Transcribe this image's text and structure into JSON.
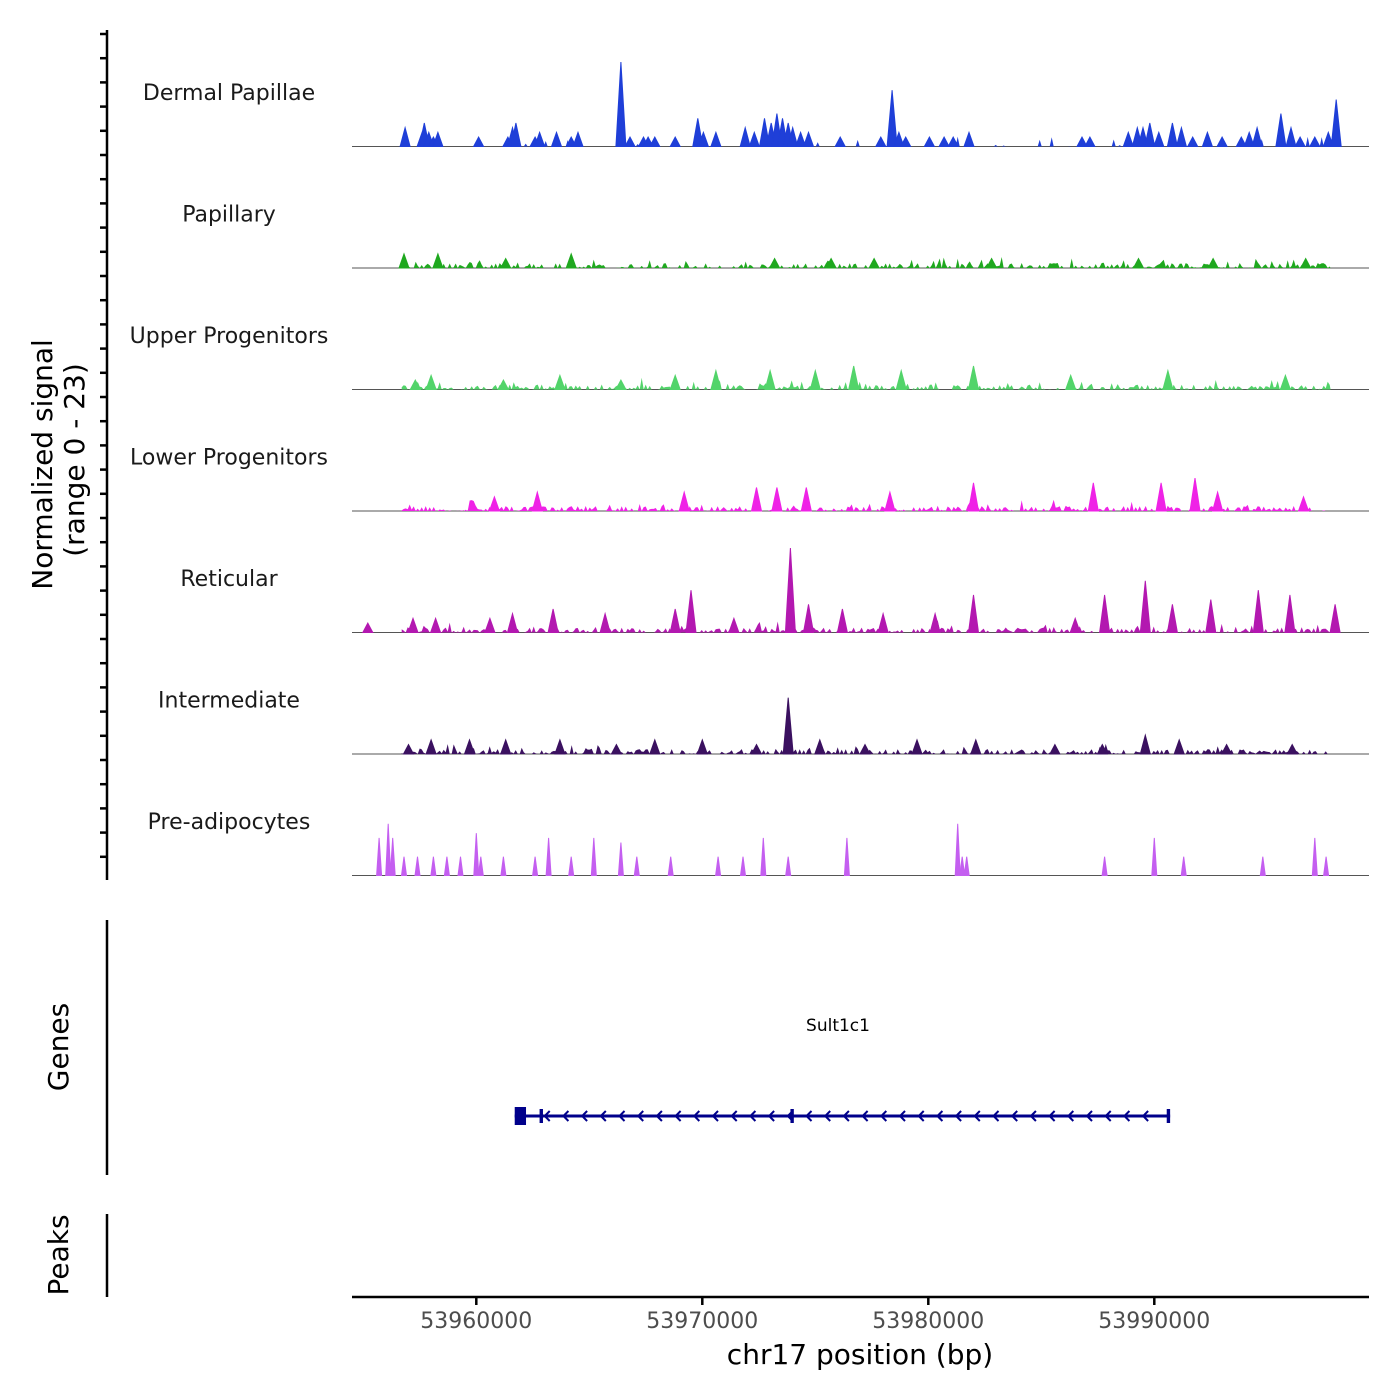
{
  "chart_data": {
    "type": "area",
    "chromosome": "chr17",
    "region": [
      53954500,
      53999500
    ],
    "signal_axis": {
      "title_line1": "Normalized signal",
      "title_line2": "(range 0 - 23)",
      "ylim": [
        0,
        23
      ]
    },
    "tracks": [
      {
        "name": "Dermal Papillae",
        "color": "#1f3fd8",
        "peaks": [
          [
            53956850,
            4
          ],
          [
            53957600,
            3
          ],
          [
            53957700,
            5
          ],
          [
            53957900,
            3
          ],
          [
            53958100,
            2
          ],
          [
            53958300,
            3
          ],
          [
            53960100,
            2
          ],
          [
            53961400,
            2
          ],
          [
            53961600,
            4
          ],
          [
            53961750,
            5
          ],
          [
            53962600,
            2
          ],
          [
            53962800,
            3
          ],
          [
            53963550,
            3
          ],
          [
            53964200,
            2
          ],
          [
            53964500,
            3
          ],
          [
            53966400,
            18
          ],
          [
            53966800,
            2
          ],
          [
            53967400,
            2
          ],
          [
            53967600,
            2
          ],
          [
            53967900,
            2
          ],
          [
            53968800,
            2
          ],
          [
            53969800,
            6
          ],
          [
            53970050,
            3
          ],
          [
            53970600,
            3
          ],
          [
            53971900,
            4
          ],
          [
            53972300,
            3
          ],
          [
            53972750,
            6
          ],
          [
            53973050,
            5
          ],
          [
            53973300,
            7
          ],
          [
            53973550,
            6
          ],
          [
            53973800,
            5
          ],
          [
            53974000,
            4
          ],
          [
            53974350,
            3
          ],
          [
            53974700,
            3
          ],
          [
            53976100,
            2
          ],
          [
            53977900,
            2
          ],
          [
            53978400,
            12
          ],
          [
            53978700,
            3
          ],
          [
            53979000,
            2
          ],
          [
            53980050,
            2
          ],
          [
            53980700,
            2
          ],
          [
            53981100,
            2
          ],
          [
            53981800,
            3
          ],
          [
            53986800,
            2
          ],
          [
            53987150,
            2
          ],
          [
            53988850,
            3
          ],
          [
            53989250,
            4
          ],
          [
            53989500,
            4
          ],
          [
            53989800,
            5
          ],
          [
            53990200,
            3
          ],
          [
            53990800,
            5
          ],
          [
            53991200,
            4
          ],
          [
            53991700,
            2
          ],
          [
            53992350,
            3
          ],
          [
            53993000,
            2
          ],
          [
            53993850,
            2
          ],
          [
            53994200,
            3
          ],
          [
            53994550,
            4
          ],
          [
            53995600,
            7
          ],
          [
            53996050,
            4
          ],
          [
            53996450,
            2
          ],
          [
            53997100,
            2
          ],
          [
            53997700,
            3
          ],
          [
            53998050,
            10
          ]
        ]
      },
      {
        "name": "Papillary",
        "color": "#1fa81f",
        "peaks": [
          [
            53956800,
            3
          ],
          [
            53958300,
            3
          ],
          [
            53961300,
            2
          ],
          [
            53964200,
            3
          ],
          [
            53973200,
            2
          ],
          [
            53975700,
            2
          ],
          [
            53977600,
            2
          ],
          [
            53982800,
            2
          ],
          [
            53989300,
            2
          ],
          [
            53992600,
            2
          ],
          [
            53996700,
            2
          ]
        ]
      },
      {
        "name": "Upper Progenitors",
        "color": "#52d46a",
        "peaks": [
          [
            53957300,
            2
          ],
          [
            53958000,
            3
          ],
          [
            53961200,
            2
          ],
          [
            53963700,
            3
          ],
          [
            53966400,
            2
          ],
          [
            53968800,
            3
          ],
          [
            53970600,
            4
          ],
          [
            53973000,
            4
          ],
          [
            53975000,
            4
          ],
          [
            53976700,
            5
          ],
          [
            53978800,
            4
          ],
          [
            53982000,
            5
          ],
          [
            53986300,
            3
          ],
          [
            53990600,
            4
          ],
          [
            53995800,
            3
          ]
        ]
      },
      {
        "name": "Lower Progenitors",
        "color": "#ef22e6",
        "peaks": [
          [
            53960800,
            3
          ],
          [
            53962700,
            4
          ],
          [
            53969200,
            4
          ],
          [
            53972400,
            5
          ],
          [
            53973300,
            5
          ],
          [
            53974600,
            5
          ],
          [
            53978300,
            4
          ],
          [
            53982000,
            6
          ],
          [
            53987300,
            6
          ],
          [
            53990300,
            6
          ],
          [
            53991800,
            7
          ],
          [
            53992800,
            4
          ],
          [
            53996600,
            3
          ]
        ]
      },
      {
        "name": "Reticular",
        "color": "#b318b0",
        "peaks": [
          [
            53955200,
            2
          ],
          [
            53957200,
            3
          ],
          [
            53958200,
            3
          ],
          [
            53960600,
            3
          ],
          [
            53961600,
            4
          ],
          [
            53963400,
            5
          ],
          [
            53965700,
            4
          ],
          [
            53968800,
            5
          ],
          [
            53969500,
            9
          ],
          [
            53971400,
            3
          ],
          [
            53973900,
            18
          ],
          [
            53974700,
            6
          ],
          [
            53976200,
            5
          ],
          [
            53978000,
            4
          ],
          [
            53980300,
            4
          ],
          [
            53982000,
            8
          ],
          [
            53986500,
            3
          ],
          [
            53987800,
            8
          ],
          [
            53989600,
            11
          ],
          [
            53990800,
            6
          ],
          [
            53992500,
            7
          ],
          [
            53994600,
            9
          ],
          [
            53996000,
            8
          ],
          [
            53998000,
            6
          ]
        ]
      },
      {
        "name": "Intermediate",
        "color": "#3b1160",
        "peaks": [
          [
            53957000,
            2
          ],
          [
            53958000,
            3
          ],
          [
            53959700,
            3
          ],
          [
            53961300,
            3
          ],
          [
            53963700,
            3
          ],
          [
            53966200,
            2
          ],
          [
            53967900,
            3
          ],
          [
            53970000,
            3
          ],
          [
            53972400,
            2
          ],
          [
            53973800,
            12
          ],
          [
            53975200,
            3
          ],
          [
            53977200,
            2
          ],
          [
            53979500,
            3
          ],
          [
            53982100,
            3
          ],
          [
            53985600,
            2
          ],
          [
            53987700,
            2
          ],
          [
            53989600,
            4
          ],
          [
            53991100,
            3
          ],
          [
            53993200,
            2
          ],
          [
            53996100,
            2
          ]
        ]
      },
      {
        "name": "Pre-adipocytes",
        "color": "#c45ff0",
        "peaks": [
          [
            53955700,
            8
          ],
          [
            53956100,
            11
          ],
          [
            53956300,
            8
          ],
          [
            53956800,
            4
          ],
          [
            53957400,
            4
          ],
          [
            53958100,
            4
          ],
          [
            53958700,
            4
          ],
          [
            53959300,
            4
          ],
          [
            53960000,
            9
          ],
          [
            53960200,
            4
          ],
          [
            53961200,
            4
          ],
          [
            53962600,
            4
          ],
          [
            53963200,
            8
          ],
          [
            53964200,
            4
          ],
          [
            53965200,
            8
          ],
          [
            53966400,
            7
          ],
          [
            53967100,
            4
          ],
          [
            53968600,
            4
          ],
          [
            53970700,
            4
          ],
          [
            53971800,
            4
          ],
          [
            53972700,
            8
          ],
          [
            53973800,
            4
          ],
          [
            53976400,
            8
          ],
          [
            53981300,
            11
          ],
          [
            53981500,
            4
          ],
          [
            53981700,
            4
          ],
          [
            53987800,
            4
          ],
          [
            53990000,
            8
          ],
          [
            53991300,
            4
          ],
          [
            53994800,
            4
          ],
          [
            53997100,
            8
          ],
          [
            53997600,
            4
          ]
        ]
      }
    ],
    "genes_track": {
      "title": "Genes",
      "gene_name": "Sult1c1",
      "strand": "-",
      "start": 53961700,
      "end": 53990700,
      "exons": [
        [
          53961700,
          53962200
        ],
        [
          53962800,
          53962950
        ],
        [
          53973900,
          53974050
        ],
        [
          53990550,
          53990700
        ]
      ]
    },
    "peaks_track": {
      "title": "Peaks",
      "peaks": []
    },
    "x_axis": {
      "title": "chr17 position (bp)",
      "ticks": [
        53960000,
        53970000,
        53980000,
        53990000
      ],
      "tick_labels": [
        "53960000",
        "53970000",
        "53980000",
        "53990000"
      ]
    }
  }
}
